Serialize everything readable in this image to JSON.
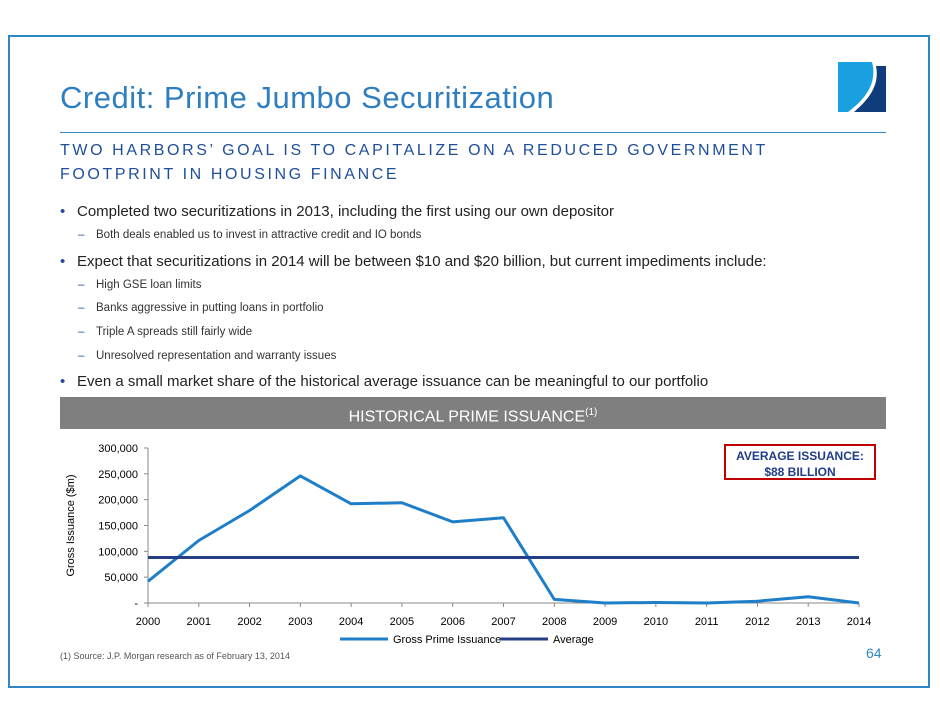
{
  "title": "Credit: Prime Jumbo Securitization",
  "subtitle": "TWO HARBORS’ GOAL IS TO CAPITALIZE ON A REDUCED GOVERNMENT FOOTPRINT IN HOUSING FINANCE",
  "bullets": [
    {
      "text": "Completed two securitizations in 2013, including the first using our own depositor",
      "subs": [
        "Both deals enabled us to invest in attractive credit and IO bonds"
      ]
    },
    {
      "text": "Expect that securitizations in 2014 will be between $10 and $20 billion, but current impediments include:",
      "subs": [
        "High GSE loan limits",
        "Banks aggressive in putting loans in portfolio",
        "Triple A spreads still fairly wide",
        "Unresolved representation and warranty issues"
      ]
    },
    {
      "text": "Even a small market share of the historical average issuance can be meaningful to our portfolio",
      "subs": []
    }
  ],
  "banner": {
    "text": "HISTORICAL PRIME ISSUANCE",
    "sup": "(1)"
  },
  "callout": {
    "line1": "AVERAGE ISSUANCE:",
    "line2": "$88 BILLION"
  },
  "footnote": "(1)    Source: J.P. Morgan research as of February 13, 2014",
  "page_number": "64",
  "colors": {
    "accent": "#2f86c6",
    "series": "#1f7ec8",
    "average": "#253f86",
    "callout_border": "#c00000"
  },
  "chart_data": {
    "type": "line",
    "title": "HISTORICAL PRIME ISSUANCE",
    "xlabel": "",
    "ylabel": "Gross Issuance ($m)",
    "categories": [
      "2000",
      "2001",
      "2002",
      "2003",
      "2004",
      "2005",
      "2006",
      "2007",
      "2008",
      "2009",
      "2010",
      "2011",
      "2012",
      "2013",
      "2014"
    ],
    "ylim": [
      0,
      300000
    ],
    "yticks": [
      0,
      50000,
      100000,
      150000,
      200000,
      250000,
      300000
    ],
    "ytick_labels": [
      "-",
      "50,000",
      "100,000",
      "150,000",
      "200,000",
      "250,000",
      "300,000"
    ],
    "series": [
      {
        "name": "Gross Prime Issuance",
        "values": [
          42000,
          121000,
          179000,
          246000,
          192000,
          194000,
          157000,
          165000,
          7000,
          0,
          1000,
          0,
          3500,
          12000,
          0
        ]
      },
      {
        "name": "Average",
        "values": [
          88000,
          88000,
          88000,
          88000,
          88000,
          88000,
          88000,
          88000,
          88000,
          88000,
          88000,
          88000,
          88000,
          88000,
          88000
        ]
      }
    ],
    "legend": "bottom",
    "grid": false
  }
}
